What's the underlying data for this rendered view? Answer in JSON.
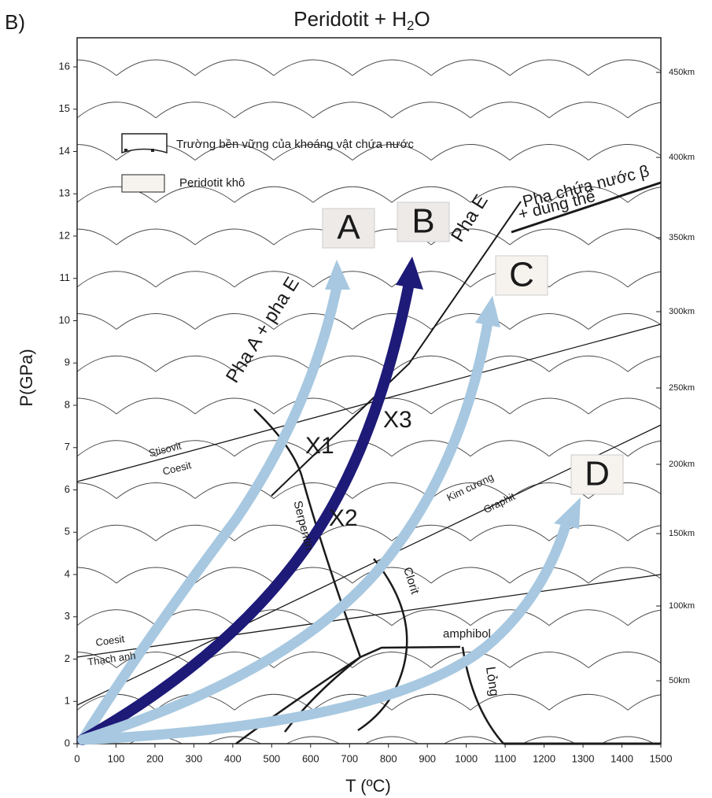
{
  "panel_label": "B)",
  "title": {
    "main": "Peridotit + H",
    "sub": "2",
    "end": "O"
  },
  "x_axis": {
    "label": "T (ºC)",
    "ticks": [
      0,
      100,
      200,
      300,
      400,
      500,
      600,
      700,
      800,
      900,
      1000,
      1100,
      1200,
      1300,
      1400,
      1500
    ]
  },
  "y_axis": {
    "label": "P(GPa)",
    "ticks": [
      0,
      1,
      2,
      3,
      4,
      5,
      6,
      7,
      8,
      9,
      10,
      11,
      12,
      13,
      14,
      15,
      16
    ]
  },
  "depth_axis": {
    "ticks": [
      "450km",
      "400km",
      "350km",
      "300km",
      "250km",
      "200km",
      "150km",
      "100km",
      "50km"
    ]
  },
  "legend": [
    "Trường bền vững của khoáng vật chứa nước",
    "Peridotit khô"
  ],
  "paths": [
    "A",
    "B",
    "C",
    "D"
  ],
  "points": [
    "X1",
    "X2",
    "X3"
  ],
  "labels": {
    "pha_a_e": "Pha A + pha E",
    "pha_e": "Pha E",
    "pha_beta": "Pha chứa nước β",
    "dung_the": "+ dung thể",
    "stisovit": "Stisovit",
    "coesit_hi": "Coesit",
    "kim_cuong": "Kim cương",
    "graphit": "Graphit",
    "coesit_lo": "Coesit",
    "thach_anh": "Thạch anh",
    "serpentin": "Serpentin",
    "clorit": "Clorit",
    "amphibol": "amphibol",
    "long": "Lỏng"
  }
}
